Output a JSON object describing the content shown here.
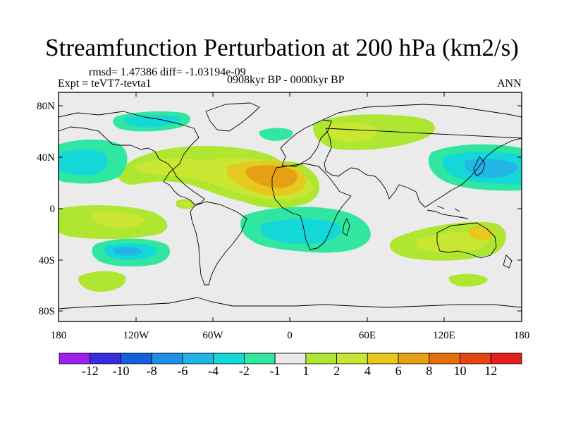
{
  "title": "Streamfunction Perturbation at 200 hPa (km2/s)",
  "stats": "rmsd= 1.47386 diff= -1.03194e-09",
  "experiment": "Expt = teVT7-tevta1",
  "period": "0908kyr BP - 0000kyr BP",
  "season": "ANN",
  "lat_ticks": [
    "80N",
    "40N",
    "0",
    "40S",
    "80S"
  ],
  "lon_ticks": [
    "180",
    "120W",
    "60W",
    "0",
    "60E",
    "120E",
    "180"
  ],
  "colorbar": {
    "labels": [
      "-12",
      "-10",
      "-8",
      "-6",
      "-4",
      "-2",
      "-1",
      "1",
      "2",
      "4",
      "6",
      "8",
      "10",
      "12"
    ],
    "colors": [
      "#a020f0",
      "#3a2be0",
      "#1360e0",
      "#1e90e6",
      "#22b6e6",
      "#14d8d8",
      "#30e6a0",
      "#eaeaea",
      "#aee632",
      "#c8e632",
      "#e6c81e",
      "#e6a014",
      "#e66e0a",
      "#e64614",
      "#e61e1e"
    ]
  }
}
